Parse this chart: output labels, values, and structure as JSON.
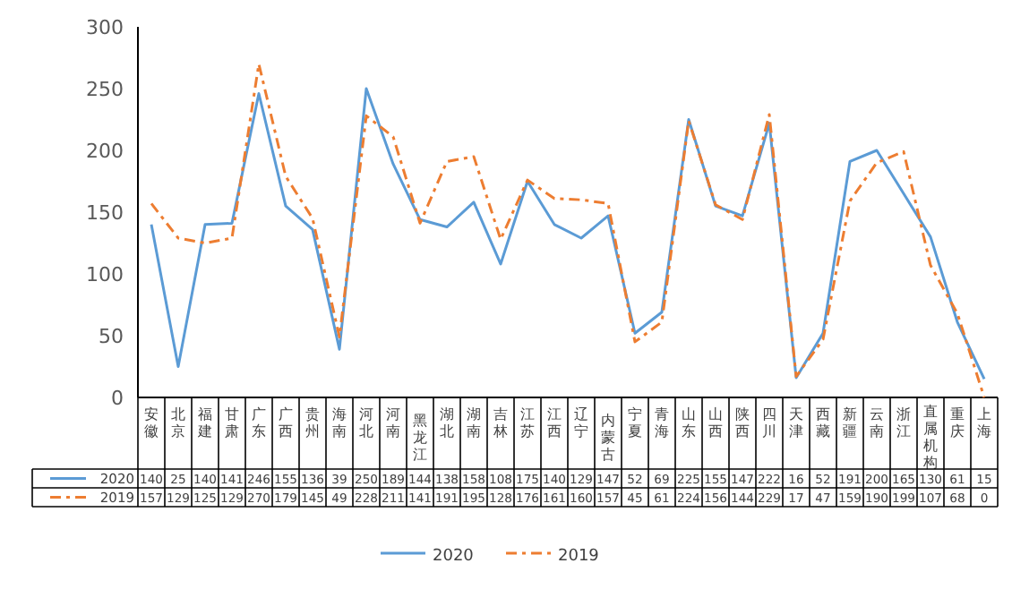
{
  "chart_data": {
    "type": "line",
    "categories": [
      "安徽",
      "北京",
      "福建",
      "甘肃",
      "广东",
      "广西",
      "贵州",
      "海南",
      "河北",
      "河南",
      "黑龙江",
      "湖北",
      "湖南",
      "吉林",
      "江苏",
      "江西",
      "辽宁",
      "内蒙古",
      "宁夏",
      "青海",
      "山东",
      "山西",
      "陕西",
      "四川",
      "天津",
      "西藏",
      "新疆",
      "云南",
      "浙江",
      "直属机构",
      "重庆",
      "上海"
    ],
    "series": [
      {
        "name": "2020",
        "color": "#5b9bd5",
        "line_style": "solid",
        "values": [
          140,
          25,
          140,
          141,
          246,
          155,
          136,
          39,
          250,
          189,
          144,
          138,
          158,
          108,
          175,
          140,
          129,
          147,
          52,
          69,
          225,
          155,
          147,
          222,
          16,
          52,
          191,
          200,
          165,
          130,
          61,
          15
        ]
      },
      {
        "name": "2019",
        "color": "#ed7d31",
        "line_style": "dashed",
        "values": [
          157,
          129,
          125,
          129,
          270,
          179,
          145,
          49,
          228,
          211,
          141,
          191,
          195,
          128,
          176,
          161,
          160,
          157,
          45,
          61,
          224,
          156,
          144,
          229,
          17,
          47,
          159,
          190,
          199,
          107,
          68,
          0
        ]
      }
    ],
    "ylim": [
      0,
      300
    ],
    "yticks": [
      0,
      50,
      100,
      150,
      200,
      250,
      300
    ],
    "grid": false,
    "legend": "bottom",
    "data_labels": true,
    "marker": "none"
  }
}
